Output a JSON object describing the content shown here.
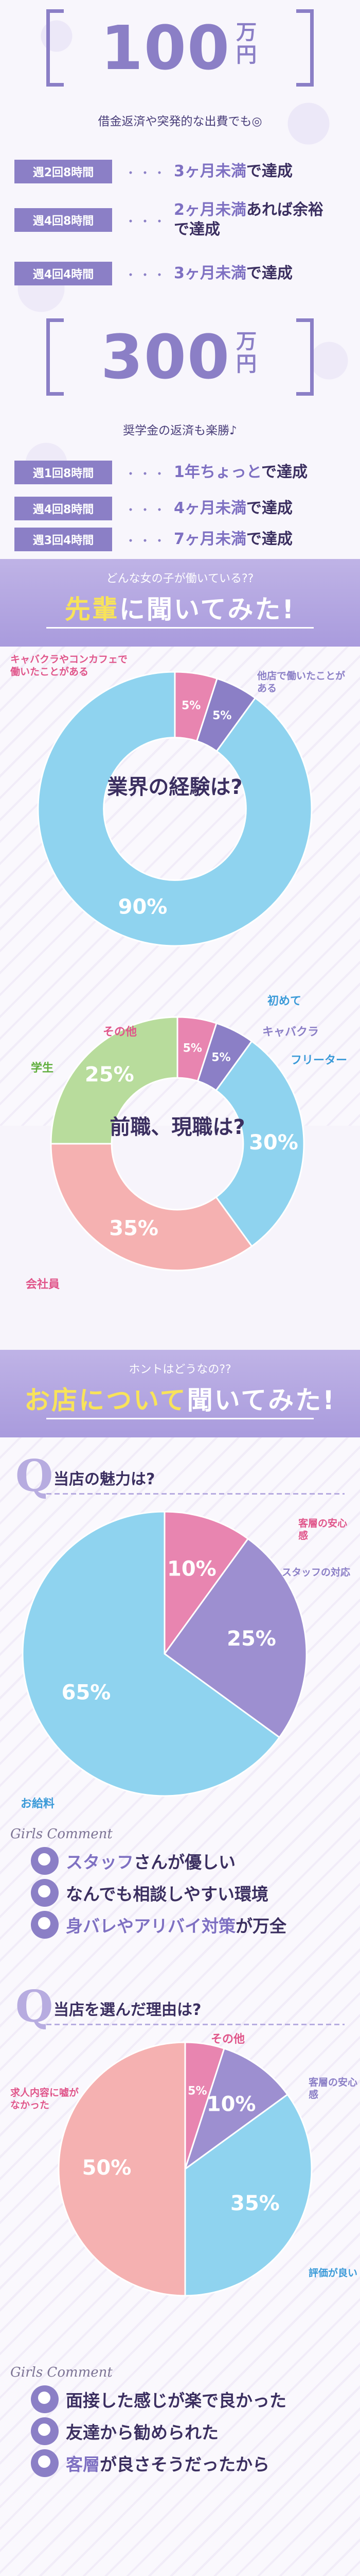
{
  "goals": {
    "block1": {
      "amount": "100",
      "unit": "万円",
      "caption": "借金返済や突発的な出費でも◎",
      "rows": [
        {
          "tag": "週2回8時間",
          "dots": "・・・",
          "highlight": "3ヶ月未満",
          "rest": "で達成"
        },
        {
          "tag": "週4回8時間",
          "dots": "・・・",
          "highlight": "2ヶ月未満",
          "rest": "あれば余裕で達成"
        },
        {
          "tag": "週4回4時間",
          "dots": "・・・",
          "highlight": "3ヶ月未満",
          "rest": "で達成"
        }
      ]
    },
    "block2": {
      "amount": "300",
      "unit": "万円",
      "caption": "奨学金の返済も楽勝♪",
      "rows": [
        {
          "tag": "週1回8時間",
          "dots": "・・・",
          "highlight": "1年ちょっと",
          "rest": "で達成"
        },
        {
          "tag": "週4回8時間",
          "dots": "・・・",
          "highlight": "4ヶ月未満",
          "rest": "で達成"
        },
        {
          "tag": "週3回4時間",
          "dots": "・・・",
          "highlight": "7ヶ月未満",
          "rest": "で達成"
        }
      ]
    }
  },
  "section1": {
    "pre": "どんな女の子が働いている??",
    "title_accent": "先輩",
    "title_rest": "に聞いてみた!"
  },
  "section2": {
    "pre": "ホントはどうなの??",
    "title_accent": "お店について",
    "title_rest": "聞いてみた!"
  },
  "chart_data": [
    {
      "type": "pie",
      "center_label": "業界の経験は?",
      "categories": [
        "キャバクラやコンカフェで働いたことがある",
        "他店で働いたことがある",
        "初めて"
      ],
      "values": [
        5,
        5,
        90
      ],
      "value_labels": [
        "5%",
        "5%",
        "90%"
      ],
      "colors": [
        "#e885b0",
        "#8b7fc6",
        "#8fd3ef"
      ]
    },
    {
      "type": "pie",
      "center_label": "前職、現職は?",
      "categories": [
        "その他",
        "キャバクラ",
        "フリーター",
        "会社員",
        "学生"
      ],
      "values": [
        5,
        5,
        30,
        35,
        25
      ],
      "value_labels": [
        "5%",
        "5%",
        "30%",
        "35%",
        "25%"
      ],
      "colors": [
        "#e885b0",
        "#8b7fc6",
        "#8fd3ef",
        "#f5b1b1",
        "#b8dc9c"
      ]
    },
    {
      "type": "pie",
      "question": "当店の魅力は?",
      "categories": [
        "客層の安心感",
        "スタッフの対応",
        "お給料"
      ],
      "values": [
        10,
        25,
        65
      ],
      "value_labels": [
        "10%",
        "25%",
        "65%"
      ],
      "colors": [
        "#e885b0",
        "#9d8fd0",
        "#8fd3ef"
      ]
    },
    {
      "type": "pie",
      "question": "当店を選んだ理由は?",
      "categories": [
        "その他",
        "客層の安心感",
        "評価が良い",
        "求人内容に嘘がなかった"
      ],
      "values": [
        5,
        10,
        35,
        50
      ],
      "value_labels": [
        "5%",
        "10%",
        "35%",
        "50%"
      ],
      "colors": [
        "#e885b0",
        "#9d8fd0",
        "#8fd3ef",
        "#f5b1b1"
      ]
    }
  ],
  "comments1": {
    "signature": "Girls Comment",
    "items": [
      {
        "hl": "スタッフ",
        "rest": "さんが優しい"
      },
      {
        "hl": "",
        "rest": "なんでも相談しやすい環境"
      },
      {
        "hl": "身バレやアリバイ対策",
        "rest": "が万全"
      }
    ]
  },
  "comments2": {
    "signature": "Girls Comment",
    "items": [
      {
        "hl": "",
        "rest": "面接した感じが楽で良かった"
      },
      {
        "hl": "",
        "rest": "友達から勧められた"
      },
      {
        "hl": "客層",
        "rest": "が良さそうだったから"
      }
    ]
  }
}
